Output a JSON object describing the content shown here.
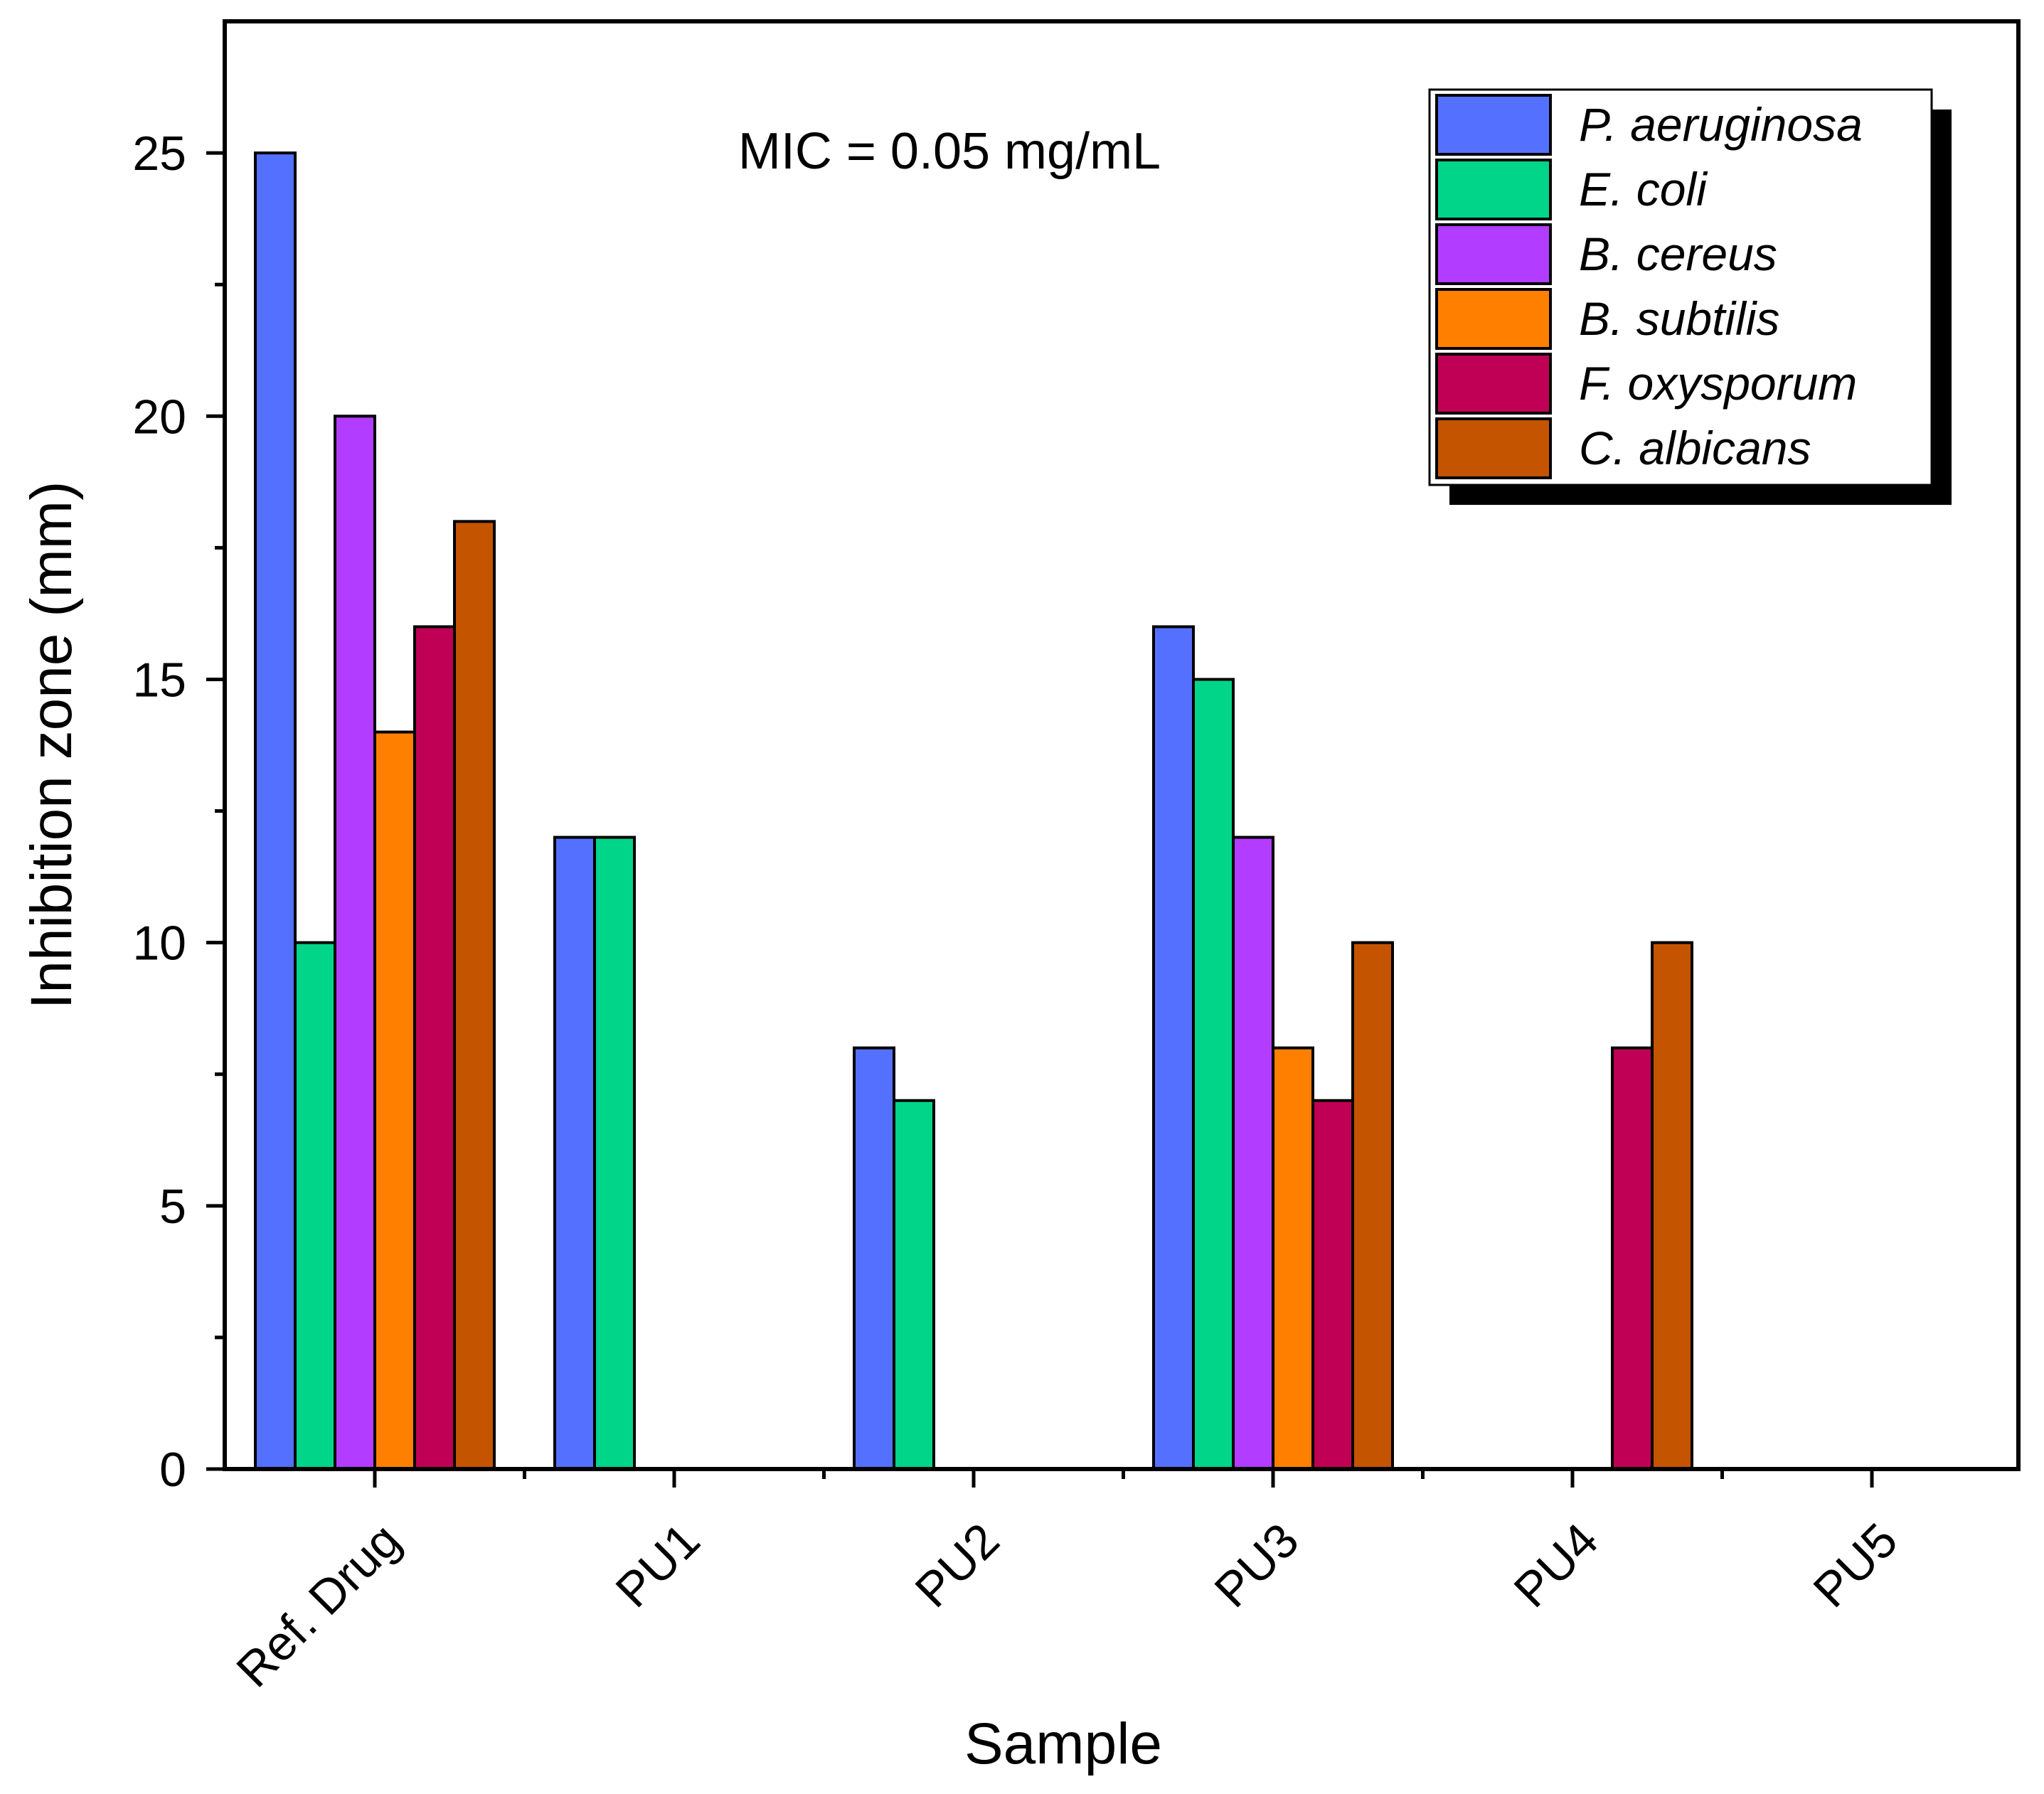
{
  "chart_data": {
    "type": "bar",
    "title": "",
    "annotation": "MIC = 0.05 mg/mL",
    "xlabel": "Sample",
    "ylabel": "Inhibition zone (mm)",
    "ylim": [
      0,
      27.5
    ],
    "yticks": [
      0,
      5,
      10,
      15,
      20,
      25
    ],
    "categories": [
      "Ref. Drug",
      "PU1",
      "PU2",
      "PU3",
      "PU4",
      "PU5"
    ],
    "series": [
      {
        "name": "P. aeruginosa",
        "color": "#5470ff",
        "values": [
          25,
          12,
          8,
          16,
          0,
          0
        ]
      },
      {
        "name": "E. coli",
        "color": "#00d58a",
        "values": [
          10,
          12,
          7,
          15,
          0,
          0
        ]
      },
      {
        "name": "B. cereus",
        "color": "#b23cff",
        "values": [
          20,
          0,
          0,
          12,
          0,
          0
        ]
      },
      {
        "name": "B. subtilis",
        "color": "#ff8000",
        "values": [
          14,
          0,
          0,
          8,
          0,
          0
        ]
      },
      {
        "name": "F. oxysporum",
        "color": "#bf0055",
        "values": [
          16,
          0,
          0,
          7,
          8,
          0
        ]
      },
      {
        "name": "C. albicans",
        "color": "#c45400",
        "values": [
          18,
          0,
          0,
          10,
          10,
          0
        ]
      }
    ],
    "legend_position": "top-right",
    "grid": false
  }
}
